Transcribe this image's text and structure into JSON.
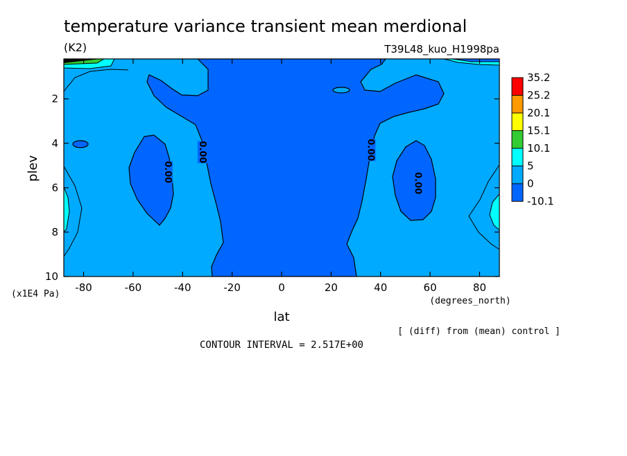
{
  "chart_data": {
    "type": "heatmap",
    "title": "temperature variance transient mean merdional",
    "units_label": "(K2)",
    "run_label": "T39L48_kuo_H1998pa",
    "xlabel": "lat",
    "x_units": "(degrees_north)",
    "ylabel": "plev",
    "y_units": "(x1E4 Pa)",
    "xlim": [
      -88,
      88
    ],
    "ylim": [
      10,
      0.2
    ],
    "x_ticks": [
      -80,
      -60,
      -40,
      -20,
      0,
      20,
      40,
      60,
      80
    ],
    "x_tick_labels": [
      "-80",
      "-60",
      "-40",
      "-20",
      "0",
      "20",
      "40",
      "60",
      "80"
    ],
    "y_ticks": [
      2,
      4,
      6,
      8,
      10
    ],
    "y_tick_labels": [
      "2",
      "4",
      "6",
      "8",
      "10"
    ],
    "contour_labels": [
      {
        "text": "0.00",
        "lat": -46,
        "plev": 5.3
      },
      {
        "text": "0.00",
        "lat": -32,
        "plev": 4.4
      },
      {
        "text": "0.00",
        "lat": 36,
        "plev": 4.3
      },
      {
        "text": "0.00",
        "lat": 55,
        "plev": 5.8
      }
    ],
    "legend": {
      "levels": [
        "35.2",
        "25.2",
        "20.1",
        "15.1",
        "10.1",
        "5",
        "0",
        "-10.1"
      ],
      "colors": [
        "#ff0000",
        "#ff9900",
        "#ffff00",
        "#33cc33",
        "#00ffff",
        "#00aaff",
        "#0066ff"
      ]
    },
    "colors": {
      "band_neg": "#0066ff",
      "band_0_5": "#00aaff",
      "band_5_10": "#00ffff",
      "band_10_15": "#33cc33",
      "band_15_20": "#ffff00",
      "band_20_25": "#ff9900",
      "band_25_35": "#ff0000"
    },
    "note": "[ (diff) from (mean) control ]",
    "contour_interval": "CONTOUR INTERVAL = 2.517E+00"
  }
}
